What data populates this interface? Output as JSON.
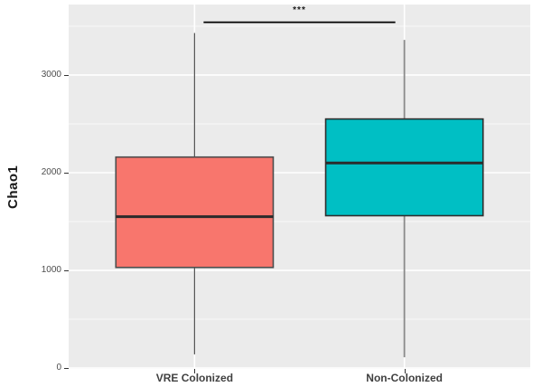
{
  "chart_data": {
    "type": "boxplot",
    "title": "",
    "xlabel": "",
    "ylabel": "Chao1",
    "categories": [
      "VRE Colonized",
      "Non-Colonized"
    ],
    "series": [
      {
        "name": "VRE Colonized",
        "fill_color": "#F8766D",
        "border_color": "#4D4D4D",
        "whisker_color": "#4F4F4F",
        "whisker_width": 1.2,
        "min": 140,
        "q1": 1030,
        "median": 1550,
        "q3": 2160,
        "max": 3430
      },
      {
        "name": "Non-Colonized",
        "fill_color": "#00BFC4",
        "border_color": "#2E2E2E",
        "whisker_color": "#8A8A8A",
        "whisker_width": 1.8,
        "min": 110,
        "q1": 1560,
        "median": 2100,
        "q3": 2550,
        "max": 3360
      }
    ],
    "y_ticks": [
      0,
      1000,
      2000,
      3000
    ],
    "y_minor_gridlines": [
      500,
      1500,
      2500,
      3500
    ],
    "ylim": [
      -9,
      3722
    ],
    "grid_on": true,
    "legend": "none",
    "significance": {
      "label": "***",
      "y": 3540,
      "between": [
        "VRE Colonized",
        "Non-Colonized"
      ],
      "bracket_color": "#000000"
    },
    "panel_bg": "#EBEBEB",
    "grid_color": "#FFFFFF",
    "median_color": "#2B2B2B",
    "axis_text_color": "#4d4d4d"
  }
}
